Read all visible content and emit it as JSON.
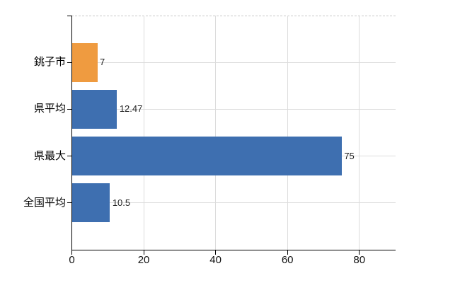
{
  "chart": {
    "background": "#ffffff",
    "axis_color": "#000000",
    "gridline_color": "#dcdcdc",
    "dashed_border_color": "#c8c8c8",
    "value_label_color": "#222222",
    "tick_label_color": "#111111",
    "category_label_color": "#000000"
  },
  "chart_data": {
    "type": "bar",
    "orientation": "horizontal",
    "title": "",
    "xlabel": "",
    "ylabel": "",
    "categories": [
      "銚子市",
      "県平均",
      "県最大",
      "全国平均"
    ],
    "values": [
      7,
      12.47,
      75,
      10.5
    ],
    "value_labels": [
      "7",
      "12.47",
      "75",
      "10.5"
    ],
    "bar_colors": [
      "#ef9b40",
      "#3e6fb0",
      "#3e6fb0",
      "#3e6fb0"
    ],
    "x_ticks": [
      0,
      20,
      40,
      60,
      80
    ],
    "xlim": [
      0,
      90
    ],
    "grid": true,
    "legend": false
  }
}
